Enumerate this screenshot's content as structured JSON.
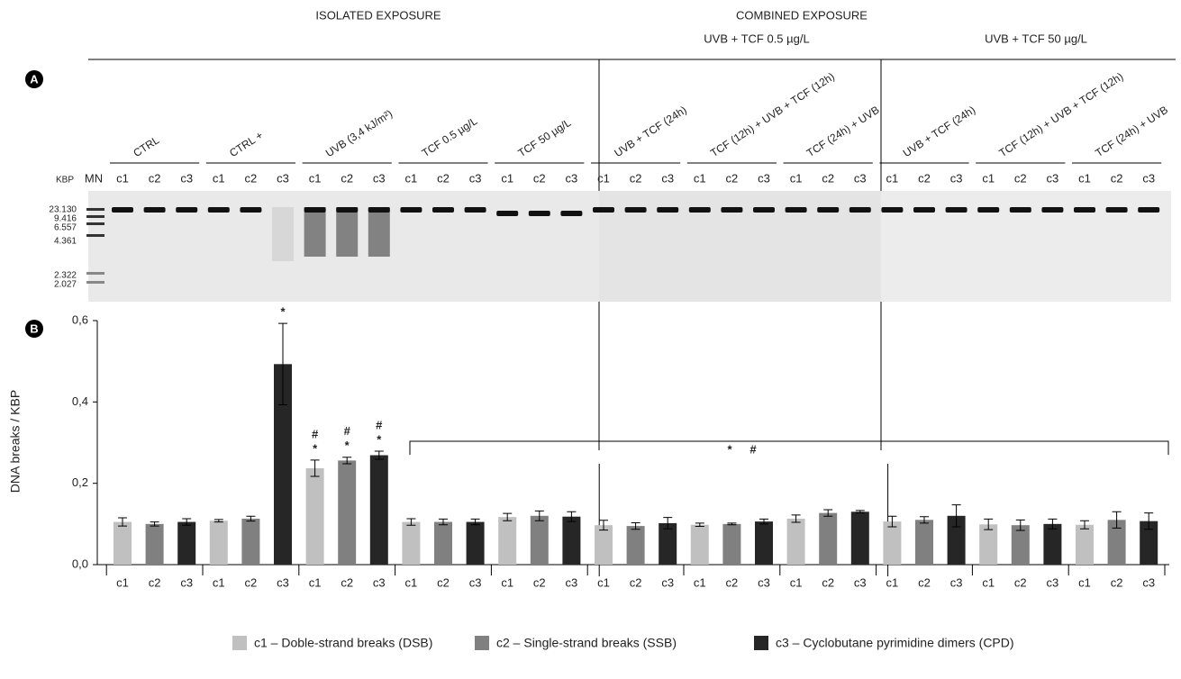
{
  "headers": {
    "isolated": "ISOLATED EXPOSURE",
    "combined": "COMBINED EXPOSURE",
    "combined_low": "UVB + TCF 0.5 µg/L",
    "combined_high": "UVB + TCF 50 µg/L"
  },
  "panels": {
    "a": "A",
    "b": "B"
  },
  "gel": {
    "unit": "KBP",
    "marker": "MN",
    "ladder": [
      "23.130",
      "9.416",
      "6.557",
      "4.361",
      "2.322",
      "2.027"
    ]
  },
  "chart_data": {
    "type": "bar",
    "y_label": "DNA breaks / KBP",
    "groups": [
      "CTRL",
      "CTRL +",
      "UVB (3,4 kJ/m²)",
      "TCF 0.5 µg/L",
      "TCF 50 µg/L",
      "UVB + TCF (24h)",
      "TCF (12h) + UVB + TCF (12h)",
      "TCF (24h) + UVB",
      "UVB + TCF (24h)",
      "TCF (12h) + UVB + TCF (12h)",
      "TCF (24h) + UVB"
    ],
    "series": [
      {
        "name": "c1 – Doble-strand breaks (DSB)",
        "label": "c1",
        "color": "#c0c0c0",
        "values": [
          0.105,
          0.108,
          0.237,
          0.105,
          0.117,
          0.097,
          0.098,
          0.113,
          0.106,
          0.099,
          0.098
        ],
        "errors": [
          0.01,
          0.003,
          0.02,
          0.008,
          0.009,
          0.012,
          0.004,
          0.009,
          0.013,
          0.013,
          0.01
        ],
        "significance": [
          null,
          null,
          [
            "#",
            "*"
          ],
          null,
          null,
          null,
          null,
          null,
          null,
          null,
          null
        ]
      },
      {
        "name": "c2 – Single-strand breaks (SSB)",
        "label": "c2",
        "color": "#808080",
        "values": [
          0.1,
          0.113,
          0.256,
          0.105,
          0.12,
          0.095,
          0.1,
          0.127,
          0.11,
          0.097,
          0.11
        ],
        "errors": [
          0.005,
          0.006,
          0.008,
          0.007,
          0.012,
          0.008,
          0.002,
          0.008,
          0.008,
          0.013,
          0.02
        ],
        "significance": [
          null,
          null,
          [
            "#",
            "*"
          ],
          null,
          null,
          null,
          null,
          null,
          null,
          null,
          null
        ]
      },
      {
        "name": "c3 – Cyclobutane pyrimidine dimers (CPD)",
        "label": "c3",
        "color": "#262626",
        "values": [
          0.105,
          0.493,
          0.269,
          0.105,
          0.118,
          0.102,
          0.106,
          0.13,
          0.12,
          0.1,
          0.107
        ],
        "errors": [
          0.008,
          0.1,
          0.01,
          0.007,
          0.012,
          0.014,
          0.006,
          0.003,
          0.027,
          0.012,
          0.02
        ],
        "significance": [
          null,
          [
            "*"
          ],
          [
            "#",
            "*"
          ],
          null,
          null,
          null,
          null,
          null,
          null,
          null,
          null
        ]
      }
    ],
    "bracket_label": [
      "*",
      "#"
    ],
    "ylim": [
      0,
      0.6
    ],
    "yticks": [
      {
        "value": 0,
        "label": "0,0"
      },
      {
        "value": 0.2,
        "label": "0,2"
      },
      {
        "value": 0.4,
        "label": "0,4"
      },
      {
        "value": 0.6,
        "label": "0,6"
      }
    ]
  }
}
